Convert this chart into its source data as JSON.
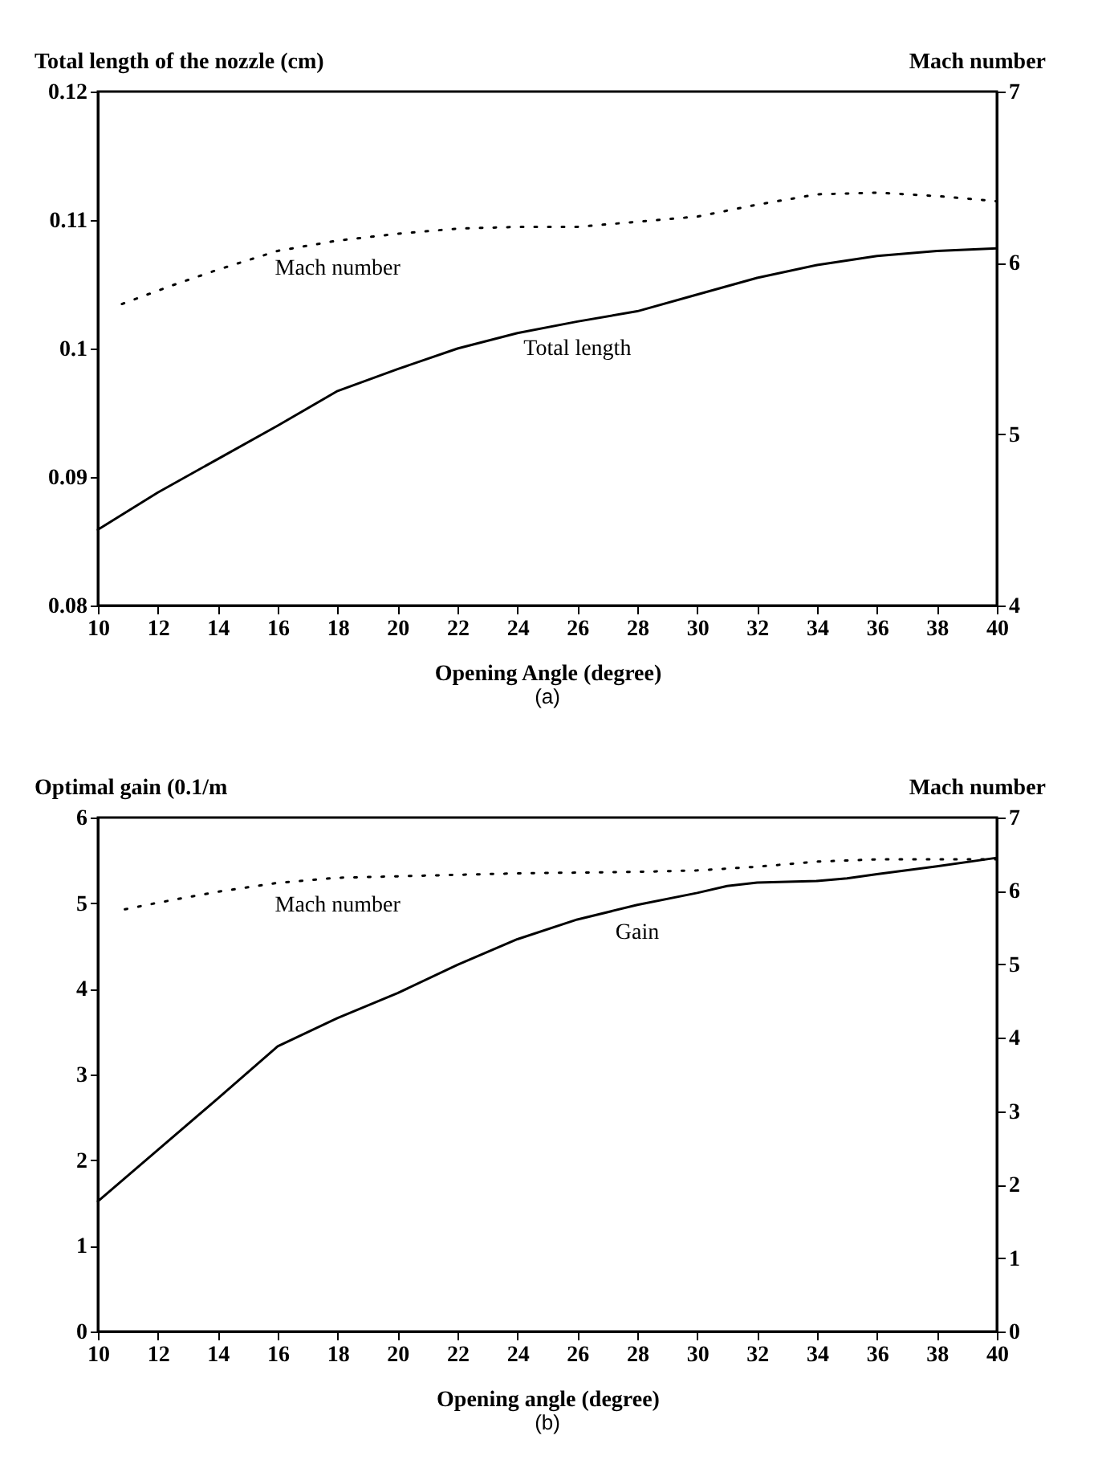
{
  "chart_data": [
    {
      "type": "line",
      "xlabel": "Opening Angle (degree)",
      "ylabel": "Total length of the nozzle (cm)",
      "y2label": "Mach number",
      "xlim": [
        10,
        40
      ],
      "xticks": [
        10,
        12,
        14,
        16,
        18,
        20,
        22,
        24,
        26,
        28,
        30,
        32,
        34,
        36,
        38,
        40
      ],
      "ylim": [
        0.08,
        0.12
      ],
      "yticks": [
        0.08,
        0.09,
        0.1,
        0.11,
        0.12
      ],
      "y2lim": [
        4,
        7
      ],
      "y2ticks": [
        4,
        5,
        6,
        7
      ],
      "series": [
        {
          "name": "Total length",
          "color": "#000000",
          "line_style": "solid",
          "x": [
            10,
            12,
            14,
            16,
            18,
            20,
            22,
            24,
            26,
            28,
            30,
            32,
            34,
            36,
            38,
            40
          ],
          "values": [
            0.0859,
            0.0888,
            0.0914,
            0.094,
            0.0967,
            0.0984,
            0.1,
            0.1012,
            0.1021,
            0.1029,
            0.1042,
            0.1055,
            0.1065,
            0.1072,
            0.1076,
            0.1078
          ]
        },
        {
          "name": "Mach number",
          "color": "#000000",
          "line_style": "dotted",
          "axis": "y2",
          "x": [
            10.8,
            12.5,
            14,
            16,
            18,
            20,
            22,
            24,
            26,
            28,
            30,
            32,
            34,
            36,
            38,
            40
          ],
          "values": [
            5.76,
            5.87,
            5.96,
            6.07,
            6.13,
            6.17,
            6.2,
            6.21,
            6.21,
            6.24,
            6.27,
            6.34,
            6.4,
            6.41,
            6.39,
            6.36
          ]
        }
      ],
      "annotations": [
        "(a)"
      ]
    },
    {
      "type": "line",
      "xlabel": "Opening angle (degree)",
      "ylabel": "Optimal gain (0.1/m",
      "y2label": "Mach number",
      "xlim": [
        10,
        40
      ],
      "xticks": [
        10,
        12,
        14,
        16,
        18,
        20,
        22,
        24,
        26,
        28,
        30,
        32,
        34,
        36,
        38,
        40
      ],
      "ylim": [
        0,
        6
      ],
      "yticks": [
        0,
        1,
        2,
        3,
        4,
        5,
        6
      ],
      "y2lim": [
        0,
        7
      ],
      "y2ticks": [
        0,
        1,
        2,
        3,
        4,
        5,
        6,
        7
      ],
      "series": [
        {
          "name": "Gain",
          "color": "#000000",
          "line_style": "solid",
          "x": [
            10,
            12,
            14,
            16,
            18,
            20,
            22,
            24,
            26,
            28,
            30,
            31,
            32,
            34,
            35,
            36,
            38,
            40
          ],
          "values": [
            1.52,
            2.12,
            2.72,
            3.33,
            3.66,
            3.95,
            4.28,
            4.58,
            4.81,
            4.98,
            5.12,
            5.2,
            5.24,
            5.26,
            5.29,
            5.34,
            5.43,
            5.53
          ]
        },
        {
          "name": "Mach number",
          "color": "#000000",
          "line_style": "dotted",
          "axis": "y2",
          "x": [
            10.9,
            12,
            14,
            16,
            18,
            20,
            22,
            24,
            26,
            28,
            30,
            32,
            34,
            36,
            38,
            40
          ],
          "values": [
            5.75,
            5.84,
            5.99,
            6.11,
            6.18,
            6.2,
            6.22,
            6.24,
            6.25,
            6.26,
            6.28,
            6.33,
            6.4,
            6.43,
            6.43,
            6.43
          ]
        }
      ],
      "annotations": [
        "(b)"
      ]
    }
  ]
}
